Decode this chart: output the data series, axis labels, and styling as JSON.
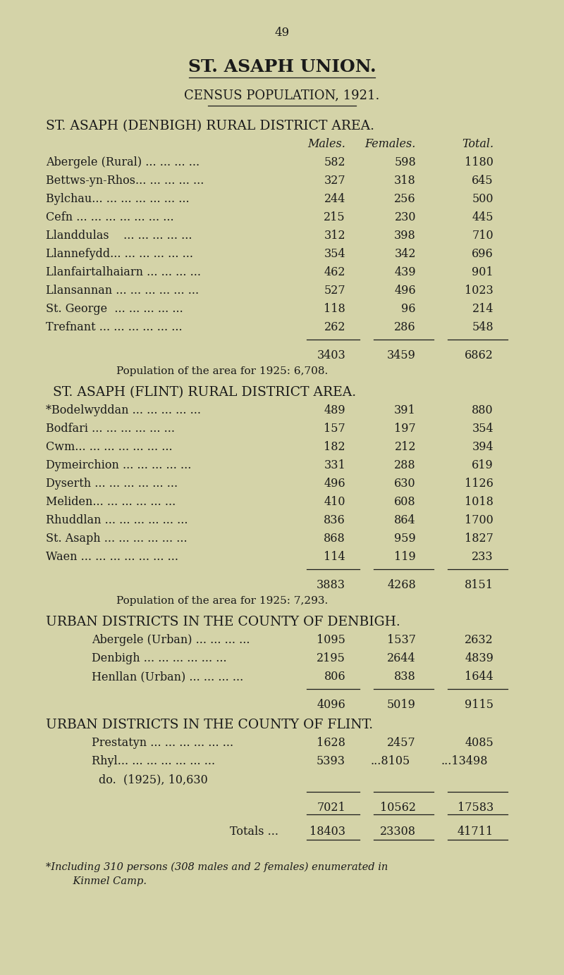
{
  "page_number": "49",
  "title1": "ST. ASAPH UNION.",
  "title2": "CENSUS POPULATION, 1921.",
  "bg_color": "#d4d3a8",
  "text_color": "#1a1a1a",
  "section1_header": "ST. ASAPH (DENBIGH) RURAL DISTRICT AREA.",
  "col_headers": [
    "Males.",
    "Females.",
    "Total."
  ],
  "section1_rows": [
    [
      "Abergele (Rural) ... ... ... ...",
      "582",
      "598",
      "1180"
    ],
    [
      "Bettws-yn-Rhos... ... ... ... ...",
      "327",
      "318",
      "645"
    ],
    [
      "Bylchau... ... ... ... ... ... ...",
      "244",
      "256",
      "500"
    ],
    [
      "Cefn ... ... ... ... ... ... ...",
      "215",
      "230",
      "445"
    ],
    [
      "Llanddulas    ... ... ... ... ...",
      "312",
      "398",
      "710"
    ],
    [
      "Llannefydd... ... ... ... ... ...",
      "354",
      "342",
      "696"
    ],
    [
      "Llanfairtalhaiarn ... ... ... ...",
      "462",
      "439",
      "901"
    ],
    [
      "Llansannan ... ... ... ... ... ...",
      "527",
      "496",
      "1023"
    ],
    [
      "St. George  ... ... ... ... ...",
      "118",
      "96",
      "214"
    ],
    [
      "Trefnant ... ... ... ... ... ...",
      "262",
      "286",
      "548"
    ]
  ],
  "section1_totals": [
    "3403",
    "3459",
    "6862"
  ],
  "section1_pop1925": "Population of the area for 1925: 6,708.",
  "section2_header": "ST. ASAPH (FLINT) RURAL DISTRICT AREA.",
  "section2_rows": [
    [
      "*Bodelwyddan ... ... ... ... ...",
      "489",
      "391",
      "880"
    ],
    [
      "Bodfari ... ... ... ... ... ...",
      "157",
      "197",
      "354"
    ],
    [
      "Cwm... ... ... ... ... ... ...",
      "182",
      "212",
      "394"
    ],
    [
      "Dymeirchion ... ... ... ... ...",
      "331",
      "288",
      "619"
    ],
    [
      "Dyserth ... ... ... ... ... ...",
      "496",
      "630",
      "1126"
    ],
    [
      "Meliden... ... ... ... ... ...",
      "410",
      "608",
      "1018"
    ],
    [
      "Rhuddlan ... ... ... ... ... ...",
      "836",
      "864",
      "1700"
    ],
    [
      "St. Asaph ... ... ... ... ... ...",
      "868",
      "959",
      "1827"
    ],
    [
      "Waen ... ... ... ... ... ... ...",
      "114",
      "119",
      "233"
    ]
  ],
  "section2_totals": [
    "3883",
    "4268",
    "8151"
  ],
  "section2_pop1925": "Population of the area for 1925: 7,293.",
  "section3_header": "URBAN DISTRICTS IN THE COUNTY OF DENBIGH.",
  "section3_rows": [
    [
      "Abergele (Urban) ... ... ... ...",
      "1095",
      "1537",
      "2632"
    ],
    [
      "Denbigh ... ... ... ... ... ...",
      "2195",
      "2644",
      "4839"
    ],
    [
      "Henllan (Urban) ... ... ... ...",
      "806",
      "838",
      "1644"
    ]
  ],
  "section3_totals": [
    "4096",
    "5019",
    "9115"
  ],
  "section4_header": "URBAN DISTRICTS IN THE COUNTY OF FLINT.",
  "section4_rows": [
    [
      "Prestatyn ... ... ... ... ... ...",
      "1628",
      "2457",
      "4085"
    ],
    [
      "Rhyl... ... ... ... ... ... ...",
      "5393",
      "8105",
      "13498"
    ],
    [
      "do.  (1925), 10,630",
      "",
      "",
      ""
    ]
  ],
  "section4_totals": [
    "7021",
    "10562",
    "17583"
  ],
  "grand_totals_label": "Totals ...",
  "grand_totals": [
    "18403",
    "23308",
    "41711"
  ],
  "footnote_line1": "*Including 310 persons (308 males and 2 females) enumerated in",
  "footnote_line2": "    Kinmel Camp."
}
